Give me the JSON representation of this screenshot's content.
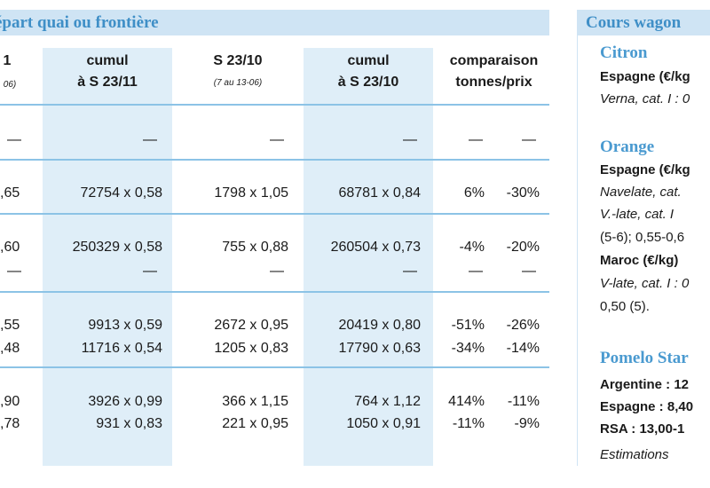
{
  "left_banner": "épart quai ou frontière",
  "right_banner": "Cours wagon",
  "columns": {
    "c1_head": "1",
    "c1_sub": "06)",
    "c2_head1": "cumul",
    "c2_head2": "à S 23/11",
    "c3_head1": "S 23/10",
    "c3_sub": "(7 au 13-06)",
    "c4_head1": "cumul",
    "c4_head2": "à S 23/10",
    "c5_head1": "comparaison",
    "c5_head2": "tonnes/prix"
  },
  "dash": "—",
  "rows": [
    {
      "c1": ",65",
      "c2": "72754 x 0,58",
      "c3": "1798 x 1,05",
      "c4": "68781 x 0,84",
      "c5a": "6%",
      "c5b": "-30%"
    },
    {
      "c1": ",60",
      "c2": "250329 x 0,58",
      "c3": "755 x 0,88",
      "c4": "260504 x 0,73",
      "c5a": "-4%",
      "c5b": "-20%"
    },
    {
      "c1": ",55",
      "c2": "9913 x 0,59",
      "c3": "2672 x 0,95",
      "c4": "20419 x 0,80",
      "c5a": "-51%",
      "c5b": "-26%"
    },
    {
      "c1": ",48",
      "c2": "11716 x 0,54",
      "c3": "1205 x 0,83",
      "c4": "17790 x 0,63",
      "c5a": "-34%",
      "c5b": "-14%"
    },
    {
      "c1": ",90",
      "c2": "3926 x 0,99",
      "c3": "366 x 1,15",
      "c4": "764 x 1,12",
      "c5a": "414%",
      "c5b": "-11%"
    },
    {
      "c1": ",78",
      "c2": "931 x 0,83",
      "c3": "221 x 0,95",
      "c4": "1050 x 0,91",
      "c5a": "-11%",
      "c5b": "-9%"
    }
  ],
  "side": {
    "citron_title": "Citron",
    "citron_l1": "Espagne (€/kg",
    "citron_l2": "Verna, cat. I : 0",
    "orange_title": "Orange",
    "orange_l1": "Espagne (€/kg",
    "orange_l2": "Navelate, cat.",
    "orange_l3": "V.-late,  cat. I",
    "orange_l4": "(5-6); 0,55-0,6",
    "orange_l5": "Maroc (€/kg)",
    "orange_l6": "V-late, cat. I : 0",
    "orange_l7": "0,50 (5).",
    "pomelo_title": "Pomelo Star",
    "pomelo_l1": "Argentine : 12",
    "pomelo_l2": "Espagne : 8,40",
    "pomelo_l3": "RSA : 13,00-1",
    "pomelo_l4": "Estimations"
  }
}
